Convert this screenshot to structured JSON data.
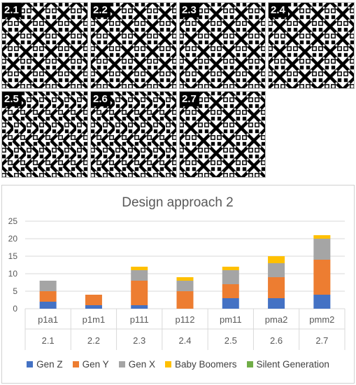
{
  "tiles": [
    {
      "label": "2.1"
    },
    {
      "label": "2.2"
    },
    {
      "label": "2.3"
    },
    {
      "label": "2.4"
    },
    {
      "label": "2.5"
    },
    {
      "label": "2.6"
    },
    {
      "label": "2.7"
    }
  ],
  "colors": {
    "gen_z": "#4472c4",
    "gen_y": "#ed7d31",
    "gen_x": "#a5a5a5",
    "baby_boomers": "#ffc000",
    "silent_generation": "#70ad47",
    "grid": "#d9d9d9",
    "text": "#595959"
  },
  "chart_data": {
    "type": "bar",
    "stacked": true,
    "title": "Design approach 2",
    "categories": [
      "p1a1",
      "p1m1",
      "p111",
      "p112",
      "pm11",
      "pma2",
      "pmm2"
    ],
    "sub_categories": [
      "2.1",
      "2.2",
      "2.3",
      "2.4",
      "2.5",
      "2.6",
      "2.7"
    ],
    "series": [
      {
        "name": "Gen Z",
        "color": "#4472c4",
        "values": [
          2,
          1,
          1,
          0,
          3,
          3,
          4
        ]
      },
      {
        "name": "Gen Y",
        "color": "#ed7d31",
        "values": [
          3,
          3,
          7,
          5,
          4,
          6,
          10
        ]
      },
      {
        "name": "Gen X",
        "color": "#a5a5a5",
        "values": [
          3,
          0,
          3,
          3,
          4,
          4,
          6
        ]
      },
      {
        "name": "Baby Boomers",
        "color": "#ffc000",
        "values": [
          0,
          0,
          1,
          1,
          1,
          2,
          1
        ]
      },
      {
        "name": "Silent Generation",
        "color": "#70ad47",
        "values": [
          0,
          0,
          0,
          0,
          0,
          0,
          0
        ]
      }
    ],
    "ylim": [
      0,
      25
    ],
    "yticks": [
      0,
      5,
      10,
      15,
      20,
      25
    ],
    "grid": true,
    "legend_position": "bottom"
  }
}
